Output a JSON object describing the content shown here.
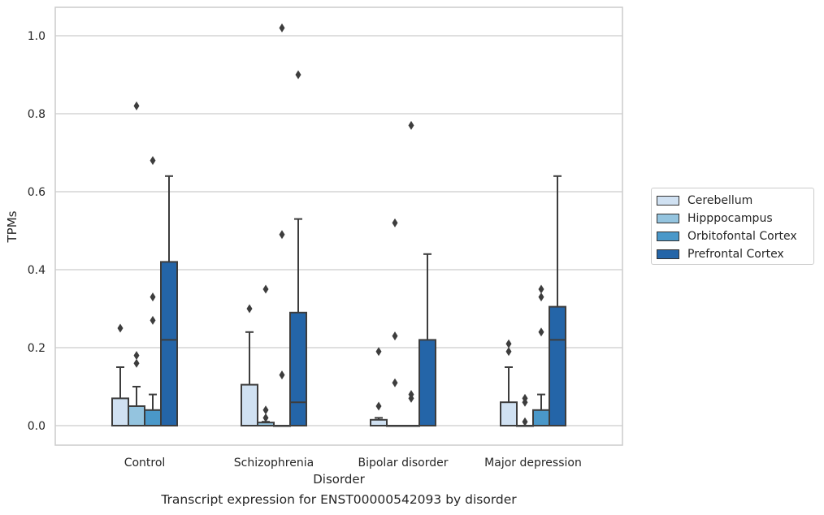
{
  "chart_data": {
    "type": "box",
    "xlabel": "Disorder",
    "ylabel": "TPMs",
    "caption": "Transcript expression for ENST00000542093 by disorder",
    "categories": [
      "Control",
      "Schizophrenia",
      "Bipolar disorder",
      "Major depression"
    ],
    "ylim": [
      -0.05,
      1.07
    ],
    "yticks": [
      "0.0",
      "0.2",
      "0.4",
      "0.6",
      "0.8",
      "1.0"
    ],
    "grid": "horizontal",
    "legend_position": "right",
    "series": [
      {
        "name": "Cerebellum",
        "color": "#d0e1f2",
        "boxes": [
          {
            "min": 0.0,
            "q1": 0.0,
            "median": 0.0,
            "q3": 0.07,
            "max": 0.15,
            "outliers": [
              0.25
            ]
          },
          {
            "min": 0.0,
            "q1": 0.0,
            "median": 0.0,
            "q3": 0.105,
            "max": 0.24,
            "outliers": [
              0.3
            ]
          },
          {
            "min": 0.0,
            "q1": 0.0,
            "median": 0.0,
            "q3": 0.015,
            "max": 0.02,
            "outliers": [
              0.05,
              0.19
            ]
          },
          {
            "min": 0.0,
            "q1": 0.0,
            "median": 0.0,
            "q3": 0.06,
            "max": 0.15,
            "outliers": [
              0.19,
              0.21
            ]
          }
        ]
      },
      {
        "name": "Hipppocampus",
        "color": "#94c4df",
        "boxes": [
          {
            "min": 0.0,
            "q1": 0.0,
            "median": 0.0,
            "q3": 0.05,
            "max": 0.1,
            "outliers": [
              0.16,
              0.18,
              0.82
            ]
          },
          {
            "min": 0.0,
            "q1": 0.0,
            "median": 0.0,
            "q3": 0.008,
            "max": 0.01,
            "outliers": [
              0.02,
              0.04,
              0.35
            ]
          },
          {
            "min": 0.0,
            "q1": 0.0,
            "median": 0.0,
            "q3": 0.0,
            "max": 0.0,
            "outliers": [
              0.11,
              0.23,
              0.52
            ]
          },
          {
            "min": 0.0,
            "q1": 0.0,
            "median": 0.0,
            "q3": 0.0,
            "max": 0.0,
            "outliers": [
              0.01,
              0.06,
              0.07
            ]
          }
        ]
      },
      {
        "name": "Orbitofontal Cortex",
        "color": "#4a98c9",
        "boxes": [
          {
            "min": 0.0,
            "q1": 0.0,
            "median": 0.0,
            "q3": 0.04,
            "max": 0.08,
            "outliers": [
              0.27,
              0.33,
              0.68
            ]
          },
          {
            "min": 0.0,
            "q1": 0.0,
            "median": 0.0,
            "q3": 0.0,
            "max": 0.0,
            "outliers": [
              0.13,
              0.49,
              1.02
            ]
          },
          {
            "min": 0.0,
            "q1": 0.0,
            "median": 0.0,
            "q3": 0.0,
            "max": 0.0,
            "outliers": [
              0.07,
              0.08,
              0.77
            ]
          },
          {
            "min": 0.0,
            "q1": 0.0,
            "median": 0.0,
            "q3": 0.04,
            "max": 0.08,
            "outliers": [
              0.24,
              0.33,
              0.35
            ]
          }
        ]
      },
      {
        "name": "Prefrontal Cortex",
        "color": "#2465a8",
        "boxes": [
          {
            "min": 0.0,
            "q1": 0.0,
            "median": 0.22,
            "q3": 0.42,
            "max": 0.64,
            "outliers": []
          },
          {
            "min": 0.0,
            "q1": 0.0,
            "median": 0.06,
            "q3": 0.29,
            "max": 0.53,
            "outliers": [
              0.9
            ]
          },
          {
            "min": 0.0,
            "q1": 0.0,
            "median": 0.0,
            "q3": 0.22,
            "max": 0.44,
            "outliers": []
          },
          {
            "min": 0.0,
            "q1": 0.0,
            "median": 0.22,
            "q3": 0.305,
            "max": 0.64,
            "outliers": []
          }
        ]
      }
    ]
  }
}
